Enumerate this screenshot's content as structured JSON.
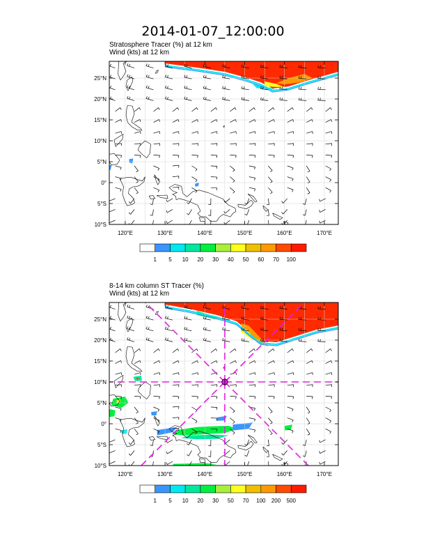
{
  "title": "2014-01-07_12:00:00",
  "colors": {
    "white": "#ffffff",
    "blue": "#3a96ff",
    "cyan": "#00e8f0",
    "teal": "#00e8a0",
    "green": "#00f040",
    "lightgreen": "#a8f03c",
    "yellow": "#ffff20",
    "gold": "#f0c000",
    "orange": "#ff9a00",
    "red": "#ff2a00",
    "redorange": "#ff4a00",
    "guide": "#e020e0"
  },
  "chart_data": [
    {
      "type": "heatmap",
      "title": "Stratosphere Tracer   (%)     at   12 km",
      "subtitle": "Wind    (kts)      at   12 km",
      "xlim": [
        116,
        173.5
      ],
      "ylim": [
        -10,
        29
      ],
      "x_ticks": [
        120,
        130,
        140,
        150,
        160,
        170
      ],
      "x_tick_labels": [
        "120°E",
        "130°E",
        "140°E",
        "150°E",
        "160°E",
        "170°E"
      ],
      "y_ticks": [
        -10,
        -5,
        0,
        5,
        10,
        15,
        20,
        25
      ],
      "y_tick_labels": [
        "10°S",
        "5°S",
        "0°",
        "5°N",
        "10°N",
        "15°N",
        "20°N",
        "25°N"
      ],
      "colorbar_labels": [
        "1",
        "5",
        "10",
        "20",
        "30",
        "40",
        "50",
        "60",
        "70",
        "100"
      ],
      "colorbar_colors": [
        "#ffffff",
        "#3a96ff",
        "#00e8f0",
        "#00e8a0",
        "#00f040",
        "#a8f03c",
        "#ffff20",
        "#f0c000",
        "#ff9a00",
        "#ff4a00",
        "#ff1a00"
      ],
      "regions": [
        {
          "name": "jet-core",
          "level_color": "#ff2a00",
          "points": [
            [
              130,
              29
            ],
            [
              173.5,
              29
            ],
            [
              173.5,
              26.5
            ],
            [
              166,
              24.5
            ],
            [
              161,
              23
            ],
            [
              157,
              22.5
            ],
            [
              154,
              24
            ],
            [
              150,
              25.2
            ],
            [
              145,
              26.5
            ],
            [
              138,
              27.5
            ],
            [
              130,
              28.5
            ]
          ]
        },
        {
          "name": "jet-orange",
          "level_color": "#ff9a00",
          "points": [
            [
              160,
              23.5
            ],
            [
              164,
              24
            ],
            [
              167,
              25
            ],
            [
              165,
              26
            ],
            [
              161,
              25
            ],
            [
              158,
              23.8
            ]
          ]
        },
        {
          "name": "jet-yellow",
          "level_color": "#ffff20",
          "points": [
            [
              155,
              23
            ],
            [
              160,
              22.8
            ],
            [
              158,
              23.6
            ],
            [
              155,
              24.2
            ]
          ]
        },
        {
          "name": "jet-edge-cyan",
          "level_color": "#00e8f0",
          "points": [
            [
              153,
              22.6
            ],
            [
              158,
              22.2
            ],
            [
              155,
              23
            ],
            [
              152,
              23.6
            ]
          ]
        },
        {
          "name": "patch-1",
          "level_color": "#3a96ff",
          "points": [
            [
              121,
              5.6
            ],
            [
              122,
              5.8
            ],
            [
              121.8,
              4.6
            ],
            [
              121,
              4.8
            ]
          ]
        },
        {
          "name": "patch-2",
          "level_color": "#3a96ff",
          "points": [
            [
              115,
              4
            ],
            [
              116.6,
              4.2
            ],
            [
              116.3,
              3
            ],
            [
              115.2,
              3.2
            ]
          ]
        },
        {
          "name": "patch-3",
          "level_color": "#3a96ff",
          "points": [
            [
              137.5,
              -0.3
            ],
            [
              138.5,
              0
            ],
            [
              138.4,
              -0.8
            ],
            [
              137.6,
              -1
            ]
          ]
        }
      ],
      "marker": null
    },
    {
      "type": "heatmap",
      "title": "8-14 km column ST Tracer    (%)",
      "subtitle": "Wind    (kts)      at   12 km",
      "xlim": [
        116,
        173.5
      ],
      "ylim": [
        -10,
        29
      ],
      "x_ticks": [
        120,
        130,
        140,
        150,
        160,
        170
      ],
      "x_tick_labels": [
        "120°E",
        "130°E",
        "140°E",
        "150°E",
        "160°E",
        "170°E"
      ],
      "y_ticks": [
        -10,
        -5,
        0,
        5,
        10,
        15,
        20,
        25
      ],
      "y_tick_labels": [
        "10°S",
        "5°S",
        "0°",
        "5°N",
        "10°N",
        "15°N",
        "20°N",
        "25°N"
      ],
      "colorbar_labels": [
        "1",
        "5",
        "10",
        "20",
        "30",
        "50",
        "70",
        "100",
        "200",
        "500"
      ],
      "colorbar_colors": [
        "#ffffff",
        "#3a96ff",
        "#00e8f0",
        "#00e8a0",
        "#00f040",
        "#a8f03c",
        "#ffff20",
        "#f0c000",
        "#ff9a00",
        "#ff4a00",
        "#ff1a00"
      ],
      "regions": [
        {
          "name": "jet-core",
          "level_color": "#ff2a00",
          "points": [
            [
              130,
              29
            ],
            [
              173.5,
              29
            ],
            [
              173.5,
              23.5
            ],
            [
              168,
              22.5
            ],
            [
              163,
              21
            ],
            [
              158,
              19.5
            ],
            [
              154,
              19.8
            ],
            [
              151,
              22
            ],
            [
              148,
              24.5
            ],
            [
              143,
              26
            ],
            [
              136,
              27.5
            ],
            [
              130,
              28.5
            ]
          ]
        },
        {
          "name": "jet-orange",
          "level_color": "#ff9a00",
          "points": [
            [
              150,
              21.5
            ],
            [
              154,
              19
            ],
            [
              156,
              18.5
            ],
            [
              154,
              20.5
            ],
            [
              151,
              23.5
            ],
            [
              149,
              24
            ]
          ]
        },
        {
          "name": "jet-yellow",
          "level_color": "#ffff20",
          "points": [
            [
              149,
              22
            ],
            [
              152,
              20
            ],
            [
              151.5,
              21.5
            ],
            [
              149.5,
              23.2
            ]
          ]
        },
        {
          "name": "jet-green",
          "level_color": "#00f040",
          "points": [
            [
              138,
              26
            ],
            [
              145,
              24.5
            ],
            [
              142,
              25.8
            ],
            [
              138,
              27
            ]
          ]
        },
        {
          "name": "equator-band-green",
          "level_color": "#00f040",
          "points": [
            [
              133,
              -1.5
            ],
            [
              138,
              -0.8
            ],
            [
              142,
              -0.6
            ],
            [
              146,
              -0.5
            ],
            [
              148,
              -1.2
            ],
            [
              145,
              -2.2
            ],
            [
              140,
              -2.5
            ],
            [
              135,
              -2.8
            ],
            [
              132,
              -2.5
            ]
          ]
        },
        {
          "name": "equator-band-teal",
          "level_color": "#00e8a0",
          "points": [
            [
              136,
              -2.8
            ],
            [
              142,
              -2.6
            ],
            [
              146,
              -2.8
            ],
            [
              143,
              -3.6
            ],
            [
              138,
              -3.7
            ],
            [
              134,
              -3.4
            ]
          ]
        },
        {
          "name": "equator-band-blue",
          "level_color": "#3a96ff",
          "points": [
            [
              128,
              -1.5
            ],
            [
              133,
              -0.8
            ],
            [
              132,
              -2
            ],
            [
              128,
              -2.8
            ]
          ]
        },
        {
          "name": "equator-band-blue-2",
          "level_color": "#3a96ff",
          "points": [
            [
              147,
              -0.2
            ],
            [
              152,
              0.3
            ],
            [
              151,
              -1.2
            ],
            [
              147,
              -1.6
            ]
          ]
        },
        {
          "name": "philippines-green",
          "level_color": "#00f040",
          "points": [
            [
              117,
              6
            ],
            [
              120,
              6.5
            ],
            [
              120.8,
              5
            ],
            [
              119,
              3.8
            ],
            [
              116.5,
              4.5
            ]
          ]
        },
        {
          "name": "philippines-yellow",
          "level_color": "#ffff20",
          "points": [
            [
              117.8,
              5.6
            ],
            [
              118.8,
              5.8
            ],
            [
              118.6,
              4.9
            ],
            [
              117.9,
              4.9
            ]
          ]
        },
        {
          "name": "philippines-top",
          "level_color": "#00e8a0",
          "points": [
            [
              122,
              11.2
            ],
            [
              124,
              11.5
            ],
            [
              124.2,
              10.3
            ],
            [
              122.5,
              10.2
            ]
          ]
        },
        {
          "name": "philippines-top-red",
          "level_color": "#ff4a00",
          "points": [
            [
              122.8,
              11
            ],
            [
              123.4,
              11
            ],
            [
              123.3,
              10.6
            ],
            [
              122.9,
              10.6
            ]
          ]
        },
        {
          "name": "west-edge-green",
          "level_color": "#00f040",
          "points": [
            [
              116,
              3.5
            ],
            [
              117.5,
              3.2
            ],
            [
              117.3,
              1.8
            ],
            [
              116,
              1.6
            ]
          ]
        },
        {
          "name": "south-band-green",
          "level_color": "#00f040",
          "points": [
            [
              132,
              -9.6
            ],
            [
              140,
              -9.4
            ],
            [
              143,
              -9.7
            ],
            [
              140,
              -10
            ],
            [
              132,
              -10
            ]
          ]
        },
        {
          "name": "east-patch-1",
          "level_color": "#00f040",
          "points": [
            [
              160,
              -0.5
            ],
            [
              162,
              -0.2
            ],
            [
              161.6,
              -1.4
            ],
            [
              160,
              -1.6
            ]
          ]
        },
        {
          "name": "east-patch-2",
          "level_color": "#3a96ff",
          "points": [
            [
              143,
              1.5
            ],
            [
              145.5,
              1.9
            ],
            [
              145,
              0.8
            ],
            [
              143,
              0.7
            ]
          ]
        },
        {
          "name": "patch-128",
          "level_color": "#3a96ff",
          "points": [
            [
              126.5,
              2.8
            ],
            [
              128,
              3
            ],
            [
              127.8,
              2
            ],
            [
              126.6,
              2
            ]
          ]
        },
        {
          "name": "patch-120",
          "level_color": "#00e8f0",
          "points": [
            [
              119,
              -1.6
            ],
            [
              120.5,
              -1.3
            ],
            [
              120.3,
              -2.4
            ],
            [
              119.1,
              -2.4
            ]
          ]
        }
      ],
      "marker": {
        "lon": 145,
        "lat": 10
      }
    }
  ]
}
